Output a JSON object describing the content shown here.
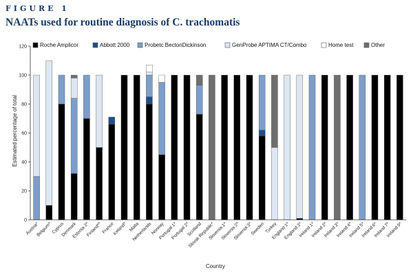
{
  "figure_label": "FIGURE 1",
  "figure_title": "NAATs used for routine diagnosis of C. trachomatis",
  "colors": {
    "Roche Amplicor": "#000000",
    "Abbott 2000": "#1f4e8c",
    "Probetc BectonDickinson": "#7d9ec9",
    "GenProbe APTIMA CT/Combo": "#dde6f1",
    "Home test": "#ffffff",
    "Other": "#6e6e6e"
  },
  "chart_data": {
    "type": "bar",
    "stacked": true,
    "xlabel": "Country",
    "ylabel": "Estimated percentage of total",
    "ylim": [
      0,
      120
    ],
    "yticks": [
      0,
      20,
      40,
      60,
      80,
      100,
      120
    ],
    "legend_position": "top",
    "categories": [
      "Austria*",
      "Belgium*",
      "Cyprus",
      "Denmark",
      "Estonia 2*",
      "Finland**",
      "France",
      "Iceland*",
      "Malta",
      "Netherlands",
      "Norway",
      "Portugal 1*",
      "Portugal 2*",
      "Scotland",
      "Slovak Republic*",
      "Slovenia 1*",
      "Slovenia 2*",
      "Slovenia 3*",
      "Sweden",
      "Turkey",
      "England 1*",
      "England 3*",
      "Ireland 1*",
      "Ireland 2*",
      "Ireland 3*",
      "Ireland 4*",
      "Ireland 5*",
      "Ireland 6*",
      "Ireland 7*",
      "Ireland 9*"
    ],
    "series": [
      {
        "name": "Roche Amplicor",
        "values": [
          0,
          10,
          80,
          32,
          70,
          50,
          66,
          100,
          100,
          80,
          45,
          100,
          100,
          73,
          0,
          100,
          100,
          100,
          58,
          0,
          0,
          1,
          0,
          100,
          0,
          100,
          0,
          100,
          100,
          100
        ]
      },
      {
        "name": "Abbott 2000",
        "values": [
          0,
          0,
          0,
          0,
          0,
          0,
          5,
          0,
          0,
          5,
          0,
          0,
          0,
          0,
          0,
          0,
          0,
          0,
          4,
          0,
          0,
          0,
          0,
          0,
          0,
          0,
          0,
          0,
          0,
          0
        ]
      },
      {
        "name": "Probetc BectonDickinson",
        "values": [
          30,
          0,
          20,
          52,
          30,
          0,
          0,
          0,
          0,
          15,
          50,
          0,
          0,
          20,
          0,
          0,
          0,
          0,
          38,
          0,
          0,
          0,
          100,
          0,
          0,
          0,
          100,
          0,
          0,
          0
        ]
      },
      {
        "name": "GenProbe APTIMA CT/Combo",
        "values": [
          70,
          100,
          0,
          14,
          0,
          50,
          0,
          0,
          0,
          2,
          0,
          0,
          0,
          0,
          0,
          0,
          0,
          0,
          0,
          50,
          100,
          99,
          0,
          0,
          0,
          0,
          0,
          0,
          0,
          0
        ]
      },
      {
        "name": "Home test",
        "values": [
          0,
          0,
          0,
          0,
          0,
          0,
          0,
          0,
          0,
          5,
          5,
          0,
          0,
          0,
          0,
          0,
          0,
          0,
          0,
          0,
          0,
          0,
          0,
          0,
          0,
          0,
          0,
          0,
          0,
          0
        ]
      },
      {
        "name": "Other",
        "values": [
          0,
          0,
          0,
          2,
          0,
          0,
          0,
          0,
          0,
          0,
          0,
          0,
          0,
          7,
          100,
          0,
          0,
          0,
          0,
          50,
          0,
          0,
          0,
          0,
          100,
          0,
          0,
          0,
          0,
          0
        ]
      }
    ]
  }
}
